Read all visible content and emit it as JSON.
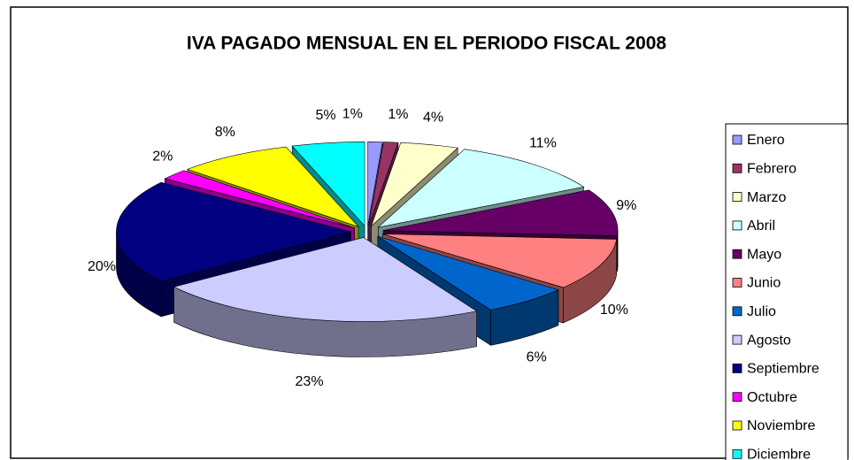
{
  "chart_data": {
    "type": "pie3d",
    "title": "IVA PAGADO MENSUAL EN EL PERIODO FISCAL 2008",
    "categories": [
      "Enero",
      "Febrero",
      "Marzo",
      "Abril",
      "Mayo",
      "Junio",
      "Julio",
      "Agosto",
      "Septiembre",
      "Octubre",
      "Noviembre",
      "Diciembre"
    ],
    "values": [
      1,
      1,
      4,
      11,
      9,
      10,
      6,
      23,
      20,
      2,
      8,
      5
    ],
    "value_labels": [
      "1%",
      "1%",
      "4%",
      "11%",
      "9%",
      "10%",
      "6%",
      "23%",
      "20%",
      "2%",
      "8%",
      "5%"
    ],
    "colors": [
      "#9999FF",
      "#993366",
      "#FFFFCC",
      "#CCFFFF",
      "#660066",
      "#FF8080",
      "#0066CC",
      "#CCCCFF",
      "#000080",
      "#FF00FF",
      "#FFFF00",
      "#00FFFF"
    ],
    "legend": "right"
  }
}
